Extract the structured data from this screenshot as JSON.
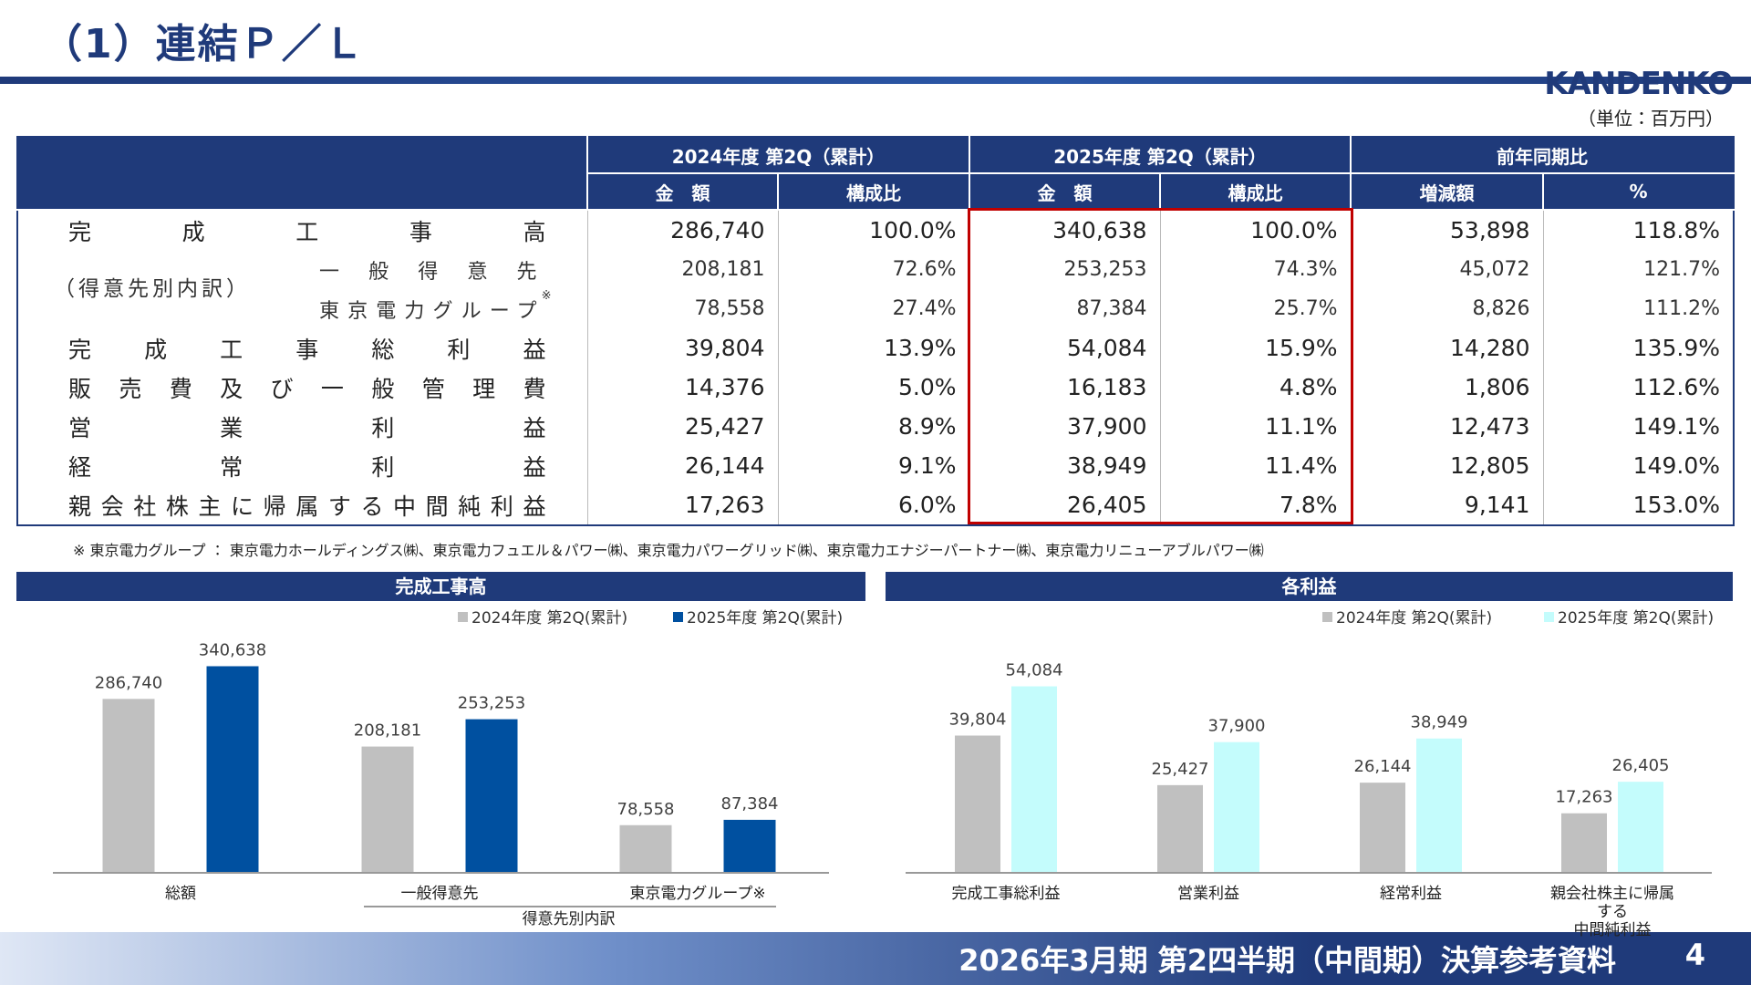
{
  "header": {
    "title": "（1）連結Ｐ／Ｌ",
    "logo": "KANDENKO",
    "unit": "（単位：百万円）"
  },
  "table": {
    "headers": {
      "top": [
        "2024年度 第2Q（累計）",
        "2025年度 第2Q（累計）",
        "前年同期比"
      ],
      "sub": [
        "金　額",
        "構成比",
        "金　額",
        "構成比",
        "増減額",
        "%"
      ]
    },
    "group_label": "（得意先別内訳）",
    "rows": [
      {
        "label": "完成工事高",
        "cells": [
          "286,740",
          "100.0%",
          "340,638",
          "100.0%",
          "53,898",
          "118.8%"
        ]
      },
      {
        "label": "一般得意先",
        "cells": [
          "208,181",
          "72.6%",
          "253,253",
          "74.3%",
          "45,072",
          "121.7%"
        ]
      },
      {
        "label": "東京電力グループ",
        "note": "※",
        "cells": [
          "78,558",
          "27.4%",
          "87,384",
          "25.7%",
          "8,826",
          "111.2%"
        ]
      },
      {
        "label": "完成工事総利益",
        "cells": [
          "39,804",
          "13.9%",
          "54,084",
          "15.9%",
          "14,280",
          "135.9%"
        ]
      },
      {
        "label": "販売費及び一般管理費",
        "cells": [
          "14,376",
          "5.0%",
          "16,183",
          "4.8%",
          "1,806",
          "112.6%"
        ]
      },
      {
        "label": "営業利益",
        "cells": [
          "25,427",
          "8.9%",
          "37,900",
          "11.1%",
          "12,473",
          "149.1%"
        ]
      },
      {
        "label": "経常利益",
        "cells": [
          "26,144",
          "9.1%",
          "38,949",
          "11.4%",
          "12,805",
          "149.0%"
        ]
      },
      {
        "label": "親会社株主に帰属する中間純利益",
        "cells": [
          "17,263",
          "6.0%",
          "26,405",
          "7.8%",
          "9,141",
          "153.0%"
        ]
      }
    ]
  },
  "footnote": "※ 東京電力グループ ： 東京電力ホールディングス㈱、東京電力フュエル＆パワー㈱、東京電力パワーグリッド㈱、東京電力エナジーパートナー㈱、東京電力リニューアブルパワー㈱",
  "charts": [
    {
      "type": "bar",
      "title": "完成工事高",
      "categories": [
        "総額",
        "一般得意先",
        "東京電力グループ※"
      ],
      "group_label": "得意先別内訳",
      "series": [
        {
          "name": "2024年度 第2Q(累計)",
          "color": "#c0c0c0",
          "values": [
            286740,
            208181,
            78558
          ],
          "value_labels": [
            "286,740",
            "208,181",
            "78,558"
          ]
        },
        {
          "name": "2025年度 第2Q(累計)",
          "color": "#0050a0",
          "values": [
            340638,
            253253,
            87384
          ],
          "value_labels": [
            "340,638",
            "253,253",
            "87,384"
          ]
        }
      ]
    },
    {
      "type": "bar",
      "title": "各利益",
      "categories": [
        "完成工事総利益",
        "営業利益",
        "経常利益",
        "親会社株主に帰属する\n中間純利益"
      ],
      "series": [
        {
          "name": "2024年度 第2Q(累計)",
          "color": "#c0c0c0",
          "values": [
            39804,
            25427,
            26144,
            17263
          ],
          "value_labels": [
            "39,804",
            "25,427",
            "26,144",
            "17,263"
          ]
        },
        {
          "name": "2025年度 第2Q(累計)",
          "color": "#c4fcfc",
          "values": [
            54084,
            37900,
            38949,
            26405
          ],
          "value_labels": [
            "54,084",
            "37,900",
            "38,949",
            "26,405"
          ]
        }
      ]
    }
  ],
  "footer": {
    "text": "2026年3月期 第2四半期（中間期）決算参考資料",
    "page": "4"
  }
}
